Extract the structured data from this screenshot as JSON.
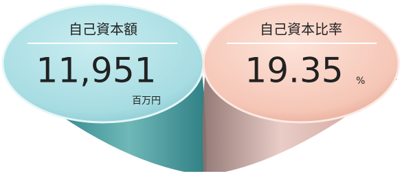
{
  "left": {
    "title": "自己資本額",
    "value": "11,951",
    "unit": "百万円"
  },
  "right": {
    "title": "自己資本比率",
    "value": "19.35",
    "unit": "%"
  }
}
